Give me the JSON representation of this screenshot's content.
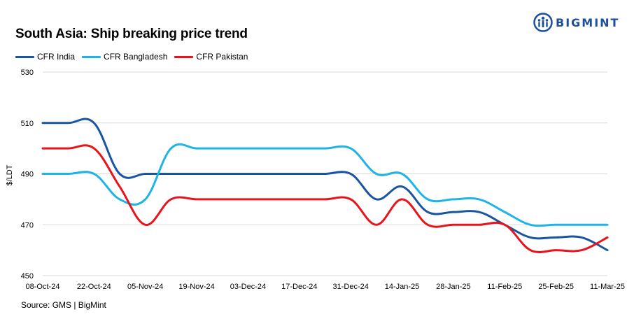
{
  "title": "South Asia: Ship breaking  price trend",
  "logo": {
    "text": "BIGMINT",
    "color": "#1b4f9c"
  },
  "source": "Source: GMS | BigMint",
  "chart_data": {
    "type": "line",
    "ylabel": "$/LDT",
    "xlabel": "",
    "ylim": [
      450,
      530
    ],
    "yticks": [
      450,
      470,
      490,
      510,
      530
    ],
    "grid": "horizontal",
    "legend_position": "top-left",
    "x_tick_labels": [
      "08-Oct-24",
      "22-Oct-24",
      "05-Nov-24",
      "19-Nov-24",
      "03-Dec-24",
      "17-Dec-24",
      "31-Dec-24",
      "14-Jan-25",
      "28-Jan-25",
      "11-Feb-25",
      "25-Feb-25",
      "11-Mar-25"
    ],
    "x": [
      "08-Oct-24",
      "15-Oct-24",
      "22-Oct-24",
      "29-Oct-24",
      "05-Nov-24",
      "12-Nov-24",
      "19-Nov-24",
      "26-Nov-24",
      "03-Dec-24",
      "10-Dec-24",
      "17-Dec-24",
      "24-Dec-24",
      "31-Dec-24",
      "07-Jan-25",
      "14-Jan-25",
      "21-Jan-25",
      "28-Jan-25",
      "04-Feb-25",
      "11-Feb-25",
      "18-Feb-25",
      "25-Feb-25",
      "04-Mar-25",
      "11-Mar-25"
    ],
    "series": [
      {
        "name": "CFR India",
        "color": "#1a56a0",
        "values": [
          510,
          510,
          510,
          490,
          490,
          490,
          490,
          490,
          490,
          490,
          490,
          490,
          490,
          480,
          485,
          475,
          475,
          475,
          470,
          465,
          465,
          465,
          460
        ]
      },
      {
        "name": "CFR Bangladesh",
        "color": "#1fb4e8",
        "values": [
          490,
          490,
          490,
          480,
          480,
          500,
          500,
          500,
          500,
          500,
          500,
          500,
          500,
          490,
          490,
          480,
          480,
          480,
          475,
          470,
          470,
          470,
          470
        ]
      },
      {
        "name": "CFR Pakistan",
        "color": "#e8141b",
        "values": [
          500,
          500,
          500,
          485,
          470,
          480,
          480,
          480,
          480,
          480,
          480,
          480,
          480,
          470,
          480,
          470,
          470,
          470,
          470,
          460,
          460,
          460,
          465
        ]
      }
    ]
  }
}
